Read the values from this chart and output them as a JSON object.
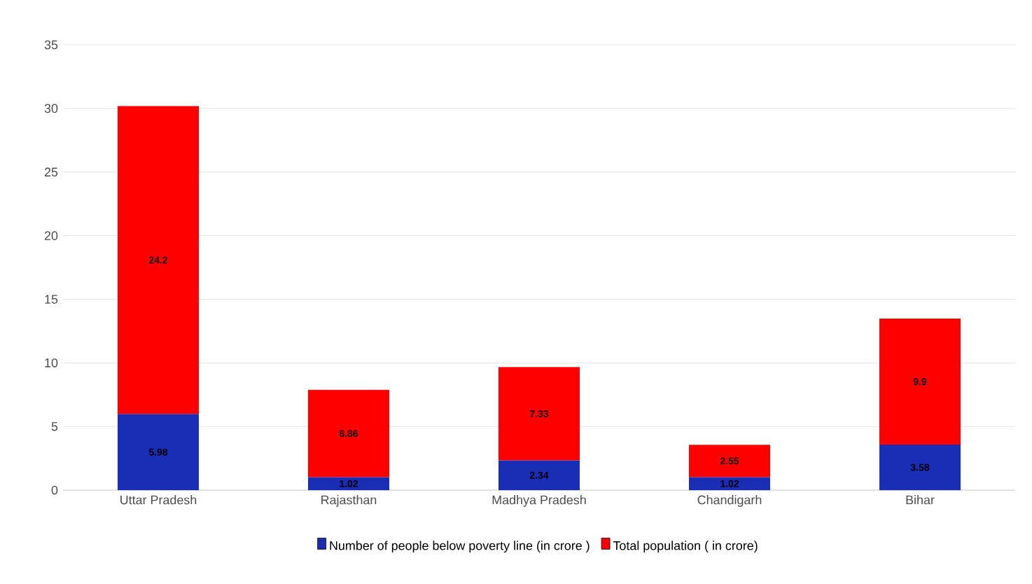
{
  "chart_data": {
    "type": "bar",
    "stacked": true,
    "categories": [
      "Uttar Pradesh",
      "Rajasthan",
      "Madhya Pradesh",
      "Chandigarh",
      "Bihar"
    ],
    "series": [
      {
        "name": "Number of people below poverty line (in crore )",
        "color": "#1a2db5",
        "values": [
          5.98,
          1.02,
          2.34,
          1.02,
          3.58
        ]
      },
      {
        "name": "Total population ( in crore)",
        "color": "#fe0000",
        "values": [
          24.2,
          6.86,
          7.33,
          2.55,
          9.9
        ]
      }
    ],
    "ylim": [
      0,
      35
    ],
    "yticks": [
      0,
      5,
      10,
      15,
      20,
      25,
      30,
      35
    ],
    "grid": "y",
    "legend": "bottom",
    "data_labels": true
  }
}
